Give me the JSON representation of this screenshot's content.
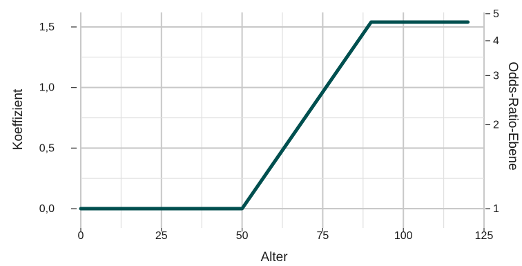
{
  "chart_data": {
    "type": "line",
    "xlabel": "Alter",
    "ylabel": "Koeffizient",
    "y2label": "Odds-Ratio-Ebene",
    "xlim": [
      0,
      125
    ],
    "ylim": [
      0,
      1.5
    ],
    "x_ticks": [
      0,
      25,
      50,
      75,
      100,
      125
    ],
    "x_tick_labels": [
      "0",
      "25",
      "50",
      "75",
      "100",
      "125"
    ],
    "y_ticks": [
      0,
      0.5,
      1.0,
      1.5
    ],
    "y_tick_labels": [
      "0,0",
      "0,5",
      "1,0",
      "1,5"
    ],
    "y2_ticks_odds": [
      1,
      2,
      3,
      4,
      5
    ],
    "y2_tick_labels": [
      "1",
      "2",
      "3",
      "4",
      "5"
    ],
    "grid": true,
    "line_color": "#004f4f",
    "series": [
      {
        "x": [
          0,
          50,
          90,
          120
        ],
        "values": [
          0,
          0,
          1.54,
          1.54
        ]
      }
    ]
  }
}
